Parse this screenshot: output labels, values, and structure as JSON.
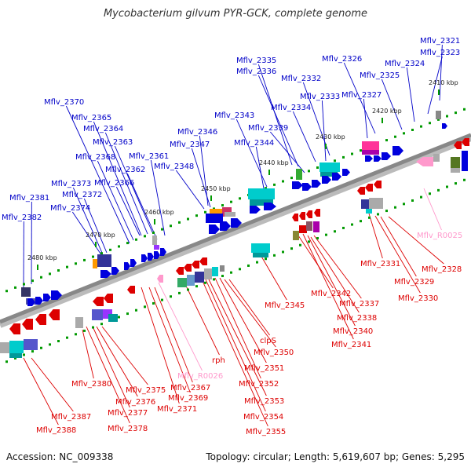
{
  "title": "Mycobacterium gilvum PYR-GCK, complete genome",
  "footer": {
    "accession": "Accession: NC_009338",
    "summary": "Topology: circular; Length: 5,619,607 bp; Genes: 5,295"
  },
  "colors": {
    "plus_label": "#0000c8",
    "minus_label": "#dd0000",
    "rna_label": "#ff99cc",
    "backbone": "#888888",
    "tick": "#009900"
  },
  "ticks": [
    "2410 kbp",
    "2420 kbp",
    "2430 kbp",
    "2440 kbp",
    "2450 kbp",
    "2460 kbp",
    "2470 kbp",
    "2480 kbp"
  ],
  "plus_labels": [
    "Mflv_2321",
    "Mflv_2323",
    "Mflv_2324",
    "Mflv_2325",
    "Mflv_2326",
    "Mflv_2327",
    "Mflv_2332",
    "Mflv_2333",
    "Mflv_2334",
    "Mflv_2335",
    "Mflv_2336",
    "Mflv_2339",
    "Mflv_2343",
    "Mflv_2344",
    "Mflv_2346",
    "Mflv_2347",
    "Mflv_2348",
    "Mflv_2361",
    "Mflv_2362",
    "Mflv_2363",
    "Mflv_2364",
    "Mflv_2365",
    "Mflv_2366",
    "Mflv_2368",
    "Mflv_2370",
    "Mflv_2372",
    "Mflv_2373",
    "Mflv_2374",
    "Mflv_2381",
    "Mflv_2382"
  ],
  "minus_labels": [
    "Mflv_2328",
    "Mflv_2329",
    "Mflv_2330",
    "Mflv_2331",
    "Mflv_2337",
    "Mflv_2338",
    "Mflv_2340",
    "Mflv_2341",
    "Mflv_2342",
    "Mflv_2345",
    "clpS",
    "Mflv_2350",
    "Mflv_2351",
    "Mflv_2352",
    "Mflv_2353",
    "Mflv_2354",
    "Mflv_2355",
    "rph",
    "Mflv_2367",
    "Mflv_2369",
    "Mflv_2371",
    "Mflv_2375",
    "Mflv_2376",
    "Mflv_2377",
    "Mflv_2378",
    "Mflv_2380",
    "Mflv_2387",
    "Mflv_2388"
  ],
  "rna_labels": [
    "Mflv_R0025",
    "Mflv_R0026"
  ]
}
